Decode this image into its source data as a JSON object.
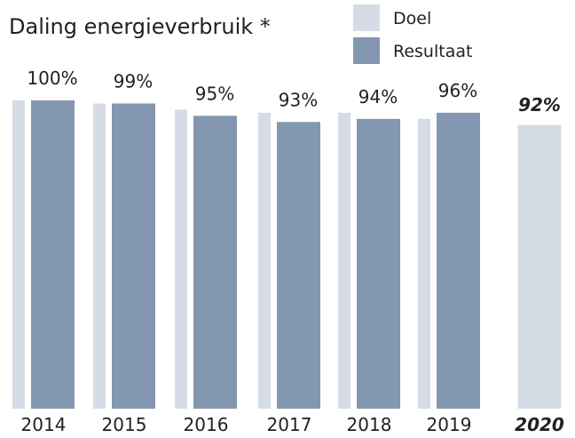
{
  "chart_data": {
    "type": "bar",
    "title": "Daling energieverbruik *",
    "categories": [
      "2014",
      "2015",
      "2016",
      "2017",
      "2018",
      "2019",
      "2020"
    ],
    "series": [
      {
        "name": "Doel",
        "color": "#d5dce6",
        "values": [
          100,
          99,
          97,
          96,
          96,
          94,
          92
        ],
        "value_labels": [
          null,
          null,
          null,
          null,
          null,
          null,
          "92%"
        ]
      },
      {
        "name": "Resultaat",
        "color": "#8497b0",
        "values": [
          100,
          99,
          95,
          93,
          94,
          96,
          null
        ],
        "value_labels": [
          "100%",
          "99%",
          "95%",
          "93%",
          "94%",
          "96%",
          null
        ]
      }
    ],
    "ylim": [
      0,
      100
    ],
    "legend": "top-right"
  }
}
